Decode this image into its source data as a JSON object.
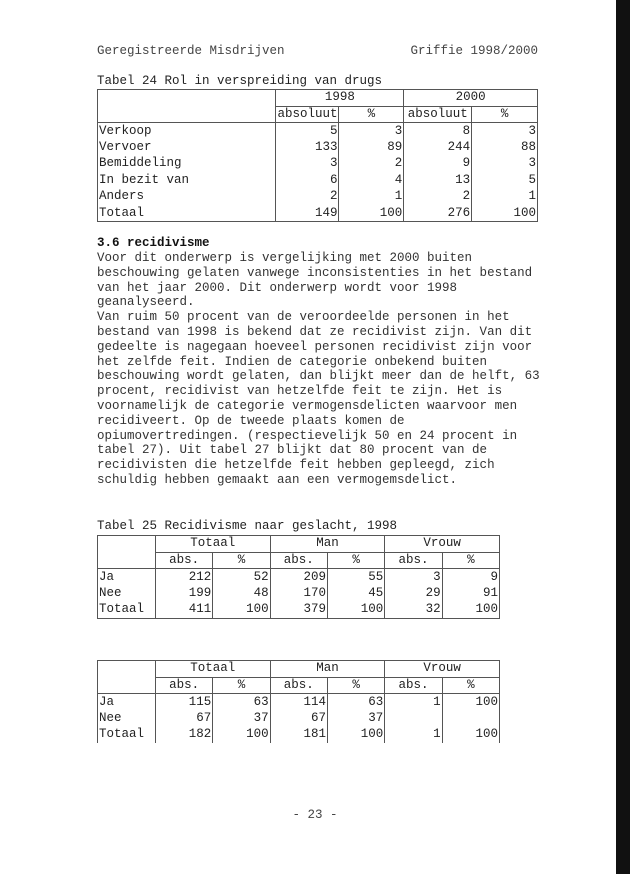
{
  "header": {
    "left": "Geregistreerde Misdrijven",
    "right": "Griffie 1998/2000"
  },
  "table24": {
    "caption": "Tabel 24 Rol in verspreiding van drugs",
    "years": [
      "1998",
      "2000"
    ],
    "subheaders": [
      "absoluut",
      "%",
      "absoluut",
      "%"
    ],
    "rows": [
      {
        "label": "Verkoop",
        "v": [
          "5",
          "3",
          "8",
          "3"
        ]
      },
      {
        "label": "Vervoer",
        "v": [
          "133",
          "89",
          "244",
          "88"
        ]
      },
      {
        "label": "Bemiddeling",
        "v": [
          "3",
          "2",
          "9",
          "3"
        ]
      },
      {
        "label": "In bezit van",
        "v": [
          "6",
          "4",
          "13",
          "5"
        ]
      },
      {
        "label": "Anders",
        "v": [
          "2",
          "1",
          "2",
          "1"
        ]
      },
      {
        "label": "Totaal",
        "v": [
          "149",
          "100",
          "276",
          "100"
        ]
      }
    ]
  },
  "section": {
    "title": "3.6 recidivisme",
    "body": "Voor dit onderwerp is vergelijking met 2000 buiten\nbeschouwing gelaten vanwege inconsistenties in het bestand\nvan het jaar 2000. Dit onderwerp wordt voor 1998\ngeanalyseerd.\nVan ruim 50 procent van de veroordeelde personen in het\nbestand van 1998 is bekend dat ze recidivist zijn. Van dit\ngedeelte is nagegaan hoeveel personen recidivist zijn voor\nhet zelfde feit. Indien de categorie onbekend buiten\nbeschouwing wordt gelaten, dan blijkt meer dan de helft, 63\nprocent, recidivist van hetzelfde feit te zijn. Het is\nvoornamelijk de categorie vermogensdelicten waarvoor men\nrecidiveert. Op de tweede plaats komen de\nopiumovertredingen. (respectievelijk 50 en 24 procent in\ntabel 27). Uit tabel 27 blijkt dat 80 procent van de\nrecidivisten die hetzelfde feit hebben gepleegd, zich\nschuldig hebben gemaakt aan een vermogemsdelict."
  },
  "table25": {
    "caption": "Tabel 25 Recidivisme naar geslacht, 1998",
    "groups": [
      "Totaal",
      "Man",
      "Vrouw"
    ],
    "subheaders": [
      "abs.",
      "%",
      "abs.",
      "%",
      "abs.",
      "%"
    ],
    "rows": [
      {
        "label": "Ja",
        "v": [
          "212",
          "52",
          "209",
          "55",
          "3",
          "9"
        ]
      },
      {
        "label": "Nee",
        "v": [
          "199",
          "48",
          "170",
          "45",
          "29",
          "91"
        ]
      },
      {
        "label": "Totaal",
        "v": [
          "411",
          "100",
          "379",
          "100",
          "32",
          "100"
        ]
      }
    ]
  },
  "table26": {
    "groups": [
      "Totaal",
      "Man",
      "Vrouw"
    ],
    "subheaders": [
      "abs.",
      "%",
      "abs.",
      "%",
      "abs.",
      "%"
    ],
    "rows": [
      {
        "label": "Ja",
        "v": [
          "115",
          "63",
          "114",
          "63",
          "1",
          "100"
        ]
      },
      {
        "label": "Nee",
        "v": [
          "67",
          "37",
          "67",
          "37",
          "",
          ""
        ]
      },
      {
        "label": "Totaal",
        "v": [
          "182",
          "100",
          "181",
          "100",
          "1",
          "100"
        ]
      }
    ]
  },
  "footer": {
    "page": "- 23 -"
  }
}
